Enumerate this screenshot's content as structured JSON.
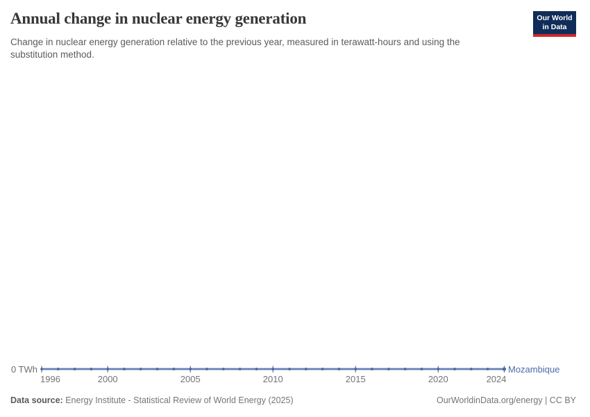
{
  "header": {
    "title": "Annual change in nuclear energy generation",
    "subtitle": "Change in nuclear energy generation relative to the previous year, measured in terawatt-hours and using the substitution method.",
    "logo": {
      "line1": "Our World",
      "line2": "in Data",
      "bg_color": "#102D59",
      "stripe_color": "#CE272D"
    }
  },
  "chart_data": {
    "type": "line",
    "title": "Annual change in nuclear energy generation",
    "unit": "TWh",
    "y_axis_label": "0 TWh",
    "x": [
      1996,
      1997,
      1998,
      1999,
      2000,
      2001,
      2002,
      2003,
      2004,
      2005,
      2006,
      2007,
      2008,
      2009,
      2010,
      2011,
      2012,
      2013,
      2014,
      2015,
      2016,
      2017,
      2018,
      2019,
      2020,
      2021,
      2022,
      2023,
      2024
    ],
    "series": [
      {
        "name": "Mozambique",
        "color": "#4C6BA8",
        "values": [
          0,
          0,
          0,
          0,
          0,
          0,
          0,
          0,
          0,
          0,
          0,
          0,
          0,
          0,
          0,
          0,
          0,
          0,
          0,
          0,
          0,
          0,
          0,
          0,
          0,
          0,
          0,
          0,
          0
        ]
      }
    ],
    "x_tick_labels": [
      1996,
      2000,
      2005,
      2010,
      2015,
      2020,
      2024
    ],
    "xlim": [
      1996,
      2024
    ],
    "ylim": [
      0,
      0
    ],
    "grid": false,
    "legend_position": "end-of-line"
  },
  "footer": {
    "source_label": "Data source:",
    "source_text": "Energy Institute - Statistical Review of World Energy (2025)",
    "right_text": "OurWorldinData.org/energy | CC BY"
  }
}
